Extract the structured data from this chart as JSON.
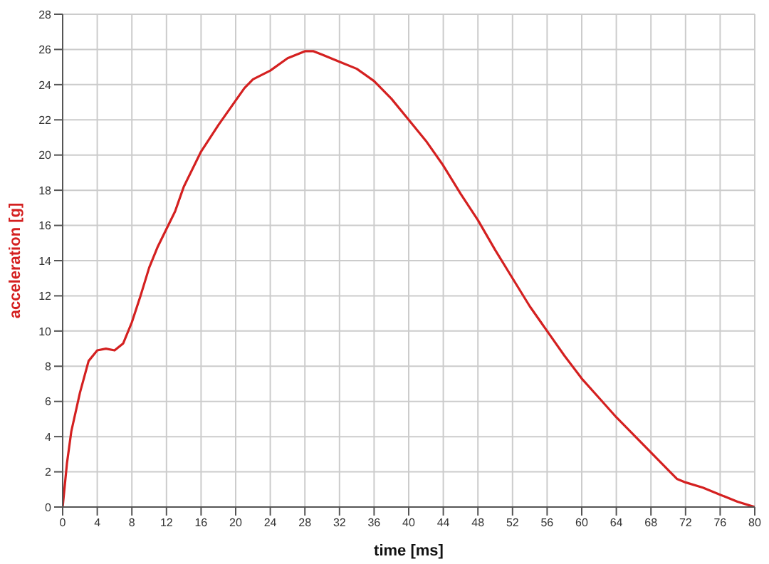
{
  "chart_data": {
    "type": "line",
    "xlabel": "time [ms]",
    "ylabel": "acceleration [g]",
    "xlim": [
      0,
      80
    ],
    "xticks": [
      0,
      4,
      8,
      12,
      16,
      20,
      24,
      28,
      32,
      36,
      40,
      44,
      48,
      52,
      56,
      60,
      64,
      68,
      72,
      76,
      80
    ],
    "ylim": [
      0,
      28
    ],
    "yticks": [
      0,
      2,
      4,
      6,
      8,
      10,
      12,
      14,
      16,
      18,
      20,
      22,
      24,
      26,
      28
    ],
    "grid": true,
    "marker": "none",
    "line_style": "solid",
    "x": [
      0,
      0.5,
      1,
      2,
      3,
      4,
      5,
      6,
      7,
      8,
      9,
      10,
      11,
      12,
      13,
      14,
      16,
      18,
      20,
      21,
      22,
      24,
      26,
      28,
      29,
      30,
      32,
      34,
      36,
      38,
      40,
      42,
      44,
      46,
      48,
      50,
      52,
      54,
      56,
      58,
      60,
      62,
      64,
      66,
      68,
      70,
      71,
      72,
      74,
      76,
      78,
      80
    ],
    "series": [
      {
        "color": "#d42020",
        "values": [
          0,
          2.5,
          4.3,
          6.5,
          8.3,
          8.9,
          9.0,
          8.9,
          9.3,
          10.5,
          12,
          13.6,
          14.8,
          15.8,
          16.8,
          18.2,
          20.2,
          21.7,
          23.1,
          23.8,
          24.3,
          24.8,
          25.5,
          25.9,
          25.9,
          25.7,
          25.3,
          24.9,
          24.2,
          23.2,
          22.0,
          20.8,
          19.4,
          17.8,
          16.3,
          14.6,
          13.0,
          11.4,
          10.0,
          8.6,
          7.3,
          6.2,
          5.1,
          4.1,
          3.1,
          2.1,
          1.6,
          1.4,
          1.1,
          0.7,
          0.3,
          0
        ]
      }
    ]
  }
}
